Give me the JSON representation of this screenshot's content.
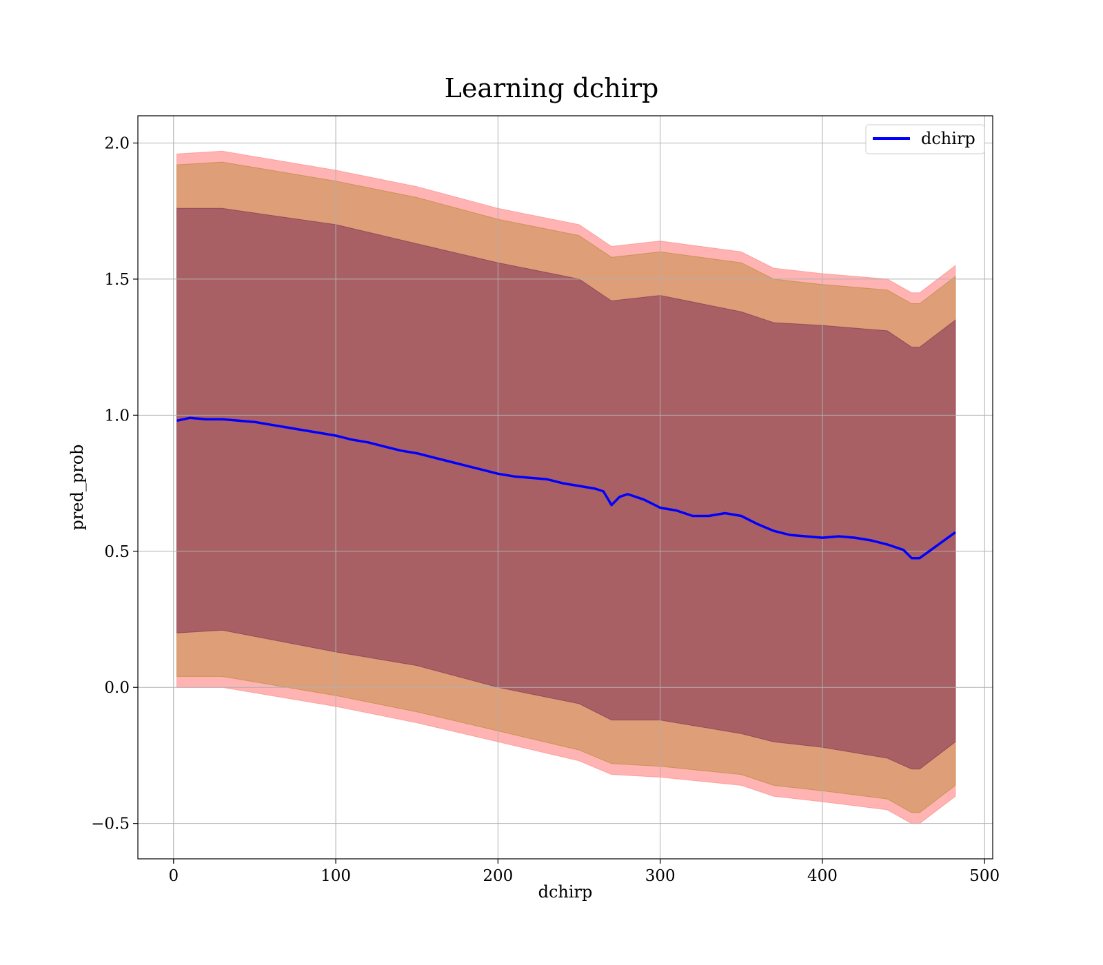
{
  "chart_data": {
    "type": "line",
    "title": "Learning dchirp",
    "xlabel": "dchirp",
    "ylabel": "pred_prob",
    "xlim": [
      -22,
      505
    ],
    "ylim": [
      -0.63,
      2.1
    ],
    "xticks": [
      0,
      100,
      200,
      300,
      400,
      500
    ],
    "xtick_labels": [
      "0",
      "100",
      "200",
      "300",
      "400",
      "500"
    ],
    "yticks": [
      -0.5,
      0.0,
      0.5,
      1.0,
      1.5,
      2.0
    ],
    "ytick_labels": [
      "−0.5",
      "0.0",
      "0.5",
      "1.0",
      "1.5",
      "2.0"
    ],
    "grid": true,
    "legend_position": "top-right",
    "colors": {
      "line": "#0000ff",
      "outer_band": "#ff8080",
      "middle_band": "#b6862e",
      "inner_band": "#7b2d55",
      "grid": "#b0b0b0"
    },
    "series": [
      {
        "name": "dchirp",
        "x": [
          2,
          10,
          20,
          30,
          40,
          50,
          60,
          70,
          80,
          90,
          100,
          110,
          120,
          130,
          140,
          150,
          160,
          170,
          180,
          190,
          200,
          210,
          220,
          230,
          240,
          250,
          260,
          265,
          270,
          275,
          280,
          290,
          300,
          310,
          320,
          330,
          340,
          350,
          360,
          370,
          380,
          390,
          400,
          410,
          420,
          430,
          440,
          450,
          455,
          460,
          482
        ],
        "y": [
          0.98,
          0.99,
          0.985,
          0.985,
          0.98,
          0.975,
          0.965,
          0.955,
          0.945,
          0.935,
          0.925,
          0.91,
          0.9,
          0.885,
          0.87,
          0.86,
          0.845,
          0.83,
          0.815,
          0.8,
          0.785,
          0.775,
          0.77,
          0.765,
          0.75,
          0.74,
          0.73,
          0.72,
          0.67,
          0.7,
          0.71,
          0.69,
          0.66,
          0.65,
          0.63,
          0.63,
          0.64,
          0.63,
          0.6,
          0.575,
          0.56,
          0.555,
          0.55,
          0.555,
          0.55,
          0.54,
          0.525,
          0.505,
          0.475,
          0.475,
          0.57
        ]
      }
    ],
    "bands": [
      {
        "role": "outer",
        "x": [
          2,
          30,
          100,
          150,
          200,
          250,
          270,
          300,
          350,
          370,
          400,
          440,
          455,
          460,
          482
        ],
        "upper": [
          1.96,
          1.97,
          1.9,
          1.84,
          1.76,
          1.7,
          1.62,
          1.64,
          1.6,
          1.54,
          1.52,
          1.5,
          1.45,
          1.45,
          1.55
        ],
        "lower": [
          0.0,
          0.0,
          -0.07,
          -0.13,
          -0.2,
          -0.27,
          -0.32,
          -0.33,
          -0.36,
          -0.4,
          -0.42,
          -0.45,
          -0.5,
          -0.5,
          -0.4
        ]
      },
      {
        "role": "middle",
        "x": [
          2,
          30,
          100,
          150,
          200,
          250,
          270,
          300,
          350,
          370,
          400,
          440,
          455,
          460,
          482
        ],
        "upper": [
          1.92,
          1.93,
          1.86,
          1.8,
          1.72,
          1.66,
          1.58,
          1.6,
          1.56,
          1.5,
          1.48,
          1.46,
          1.41,
          1.41,
          1.51
        ],
        "lower": [
          0.04,
          0.04,
          -0.03,
          -0.09,
          -0.16,
          -0.23,
          -0.28,
          -0.29,
          -0.32,
          -0.36,
          -0.38,
          -0.41,
          -0.46,
          -0.46,
          -0.36
        ]
      },
      {
        "role": "inner",
        "x": [
          2,
          30,
          100,
          150,
          200,
          250,
          270,
          300,
          350,
          370,
          400,
          440,
          455,
          460,
          482
        ],
        "upper": [
          1.76,
          1.76,
          1.7,
          1.63,
          1.56,
          1.5,
          1.42,
          1.44,
          1.38,
          1.34,
          1.33,
          1.31,
          1.25,
          1.25,
          1.35
        ],
        "lower": [
          0.2,
          0.21,
          0.13,
          0.08,
          0.0,
          -0.06,
          -0.12,
          -0.12,
          -0.17,
          -0.2,
          -0.22,
          -0.26,
          -0.3,
          -0.3,
          -0.2
        ]
      }
    ]
  }
}
